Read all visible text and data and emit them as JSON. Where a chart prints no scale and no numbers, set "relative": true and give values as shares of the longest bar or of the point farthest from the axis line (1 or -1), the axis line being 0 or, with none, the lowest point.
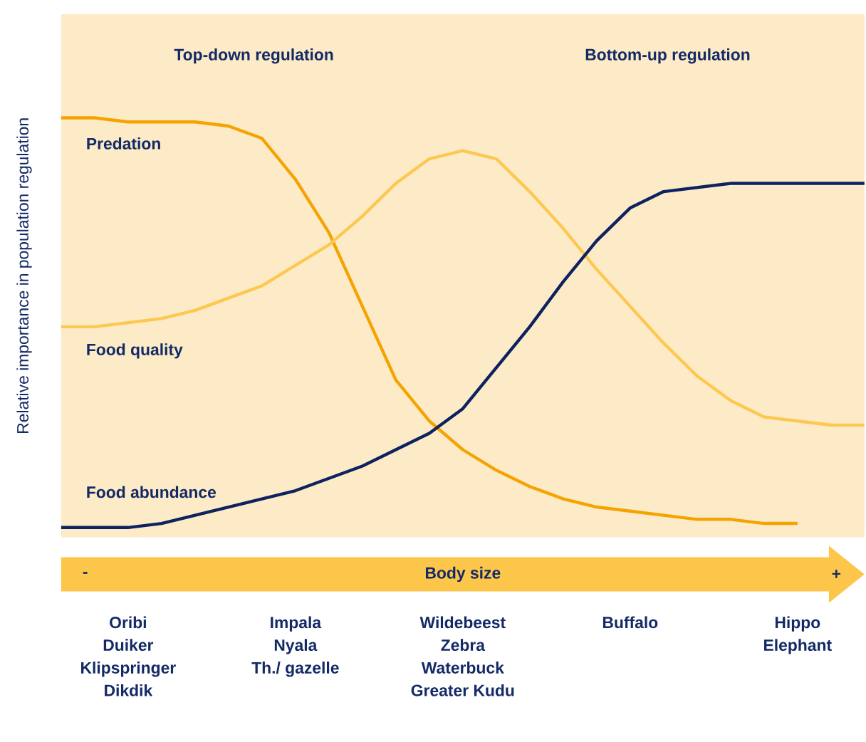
{
  "chart_data": {
    "type": "line",
    "relative": true,
    "xlabel": "Body size",
    "ylabel": "Relative importance in population regulation",
    "categories": [
      null,
      null,
      "Oribi\nDuiker\nKlipspringer\nDikdik",
      null,
      null,
      null,
      null,
      "Impala\nNyala\nTh./ gazelle",
      null,
      null,
      null,
      null,
      "Wildebeest\nZebra\nWaterbuck\nGreater Kudu",
      null,
      null,
      null,
      null,
      "Buffalo",
      null,
      null,
      null,
      null,
      "Hippo\nElephant",
      null,
      null
    ],
    "annotations": [
      "Top-down regulation",
      "Bottom-up regulation",
      "-",
      "+"
    ],
    "series": [
      {
        "name": "Predation",
        "color": "#f5a300",
        "values": [
          1.0,
          1.0,
          0.99,
          0.99,
          0.99,
          0.98,
          0.95,
          0.85,
          0.72,
          0.54,
          0.36,
          0.26,
          0.19,
          0.14,
          0.1,
          0.07,
          0.05,
          0.04,
          0.03,
          0.02,
          0.02,
          0.01,
          0.01,
          null,
          null
        ]
      },
      {
        "name": "Food quality",
        "color": "#fdc851",
        "values": [
          0.49,
          0.49,
          0.5,
          0.51,
          0.53,
          0.56,
          0.59,
          0.64,
          0.69,
          0.76,
          0.84,
          0.9,
          0.92,
          0.9,
          0.82,
          0.73,
          0.63,
          0.54,
          0.45,
          0.37,
          0.31,
          0.27,
          0.26,
          0.25,
          0.25
        ]
      },
      {
        "name": "Food abundance",
        "color": "#0f2260",
        "values": [
          0.0,
          0.0,
          0.0,
          0.01,
          0.03,
          0.05,
          0.07,
          0.09,
          0.12,
          0.15,
          0.19,
          0.23,
          0.29,
          0.39,
          0.49,
          0.6,
          0.7,
          0.78,
          0.82,
          0.83,
          0.84,
          0.84,
          0.84,
          0.84,
          0.84
        ]
      }
    ]
  }
}
